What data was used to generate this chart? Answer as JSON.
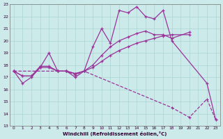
{
  "background_color": "#cceaea",
  "grid_color": "#aad4d4",
  "line_color": "#993399",
  "xlabel": "Windchill (Refroidissement éolien,°C)",
  "ylim": [
    13,
    23
  ],
  "xlim": [
    -0.5,
    23.5
  ],
  "yticks": [
    13,
    14,
    15,
    16,
    17,
    18,
    19,
    20,
    21,
    22,
    23
  ],
  "xticks": [
    0,
    1,
    2,
    3,
    4,
    5,
    6,
    7,
    8,
    9,
    10,
    11,
    12,
    13,
    14,
    15,
    16,
    17,
    18,
    19,
    20,
    21,
    22,
    23
  ],
  "curve1": {
    "x": [
      0,
      1,
      2,
      3,
      4,
      5,
      6,
      7,
      8,
      9,
      10,
      11,
      12,
      13,
      14,
      15,
      16,
      17,
      18,
      22,
      23
    ],
    "y": [
      17.5,
      16.5,
      17.0,
      17.8,
      19.0,
      17.5,
      17.5,
      17.0,
      17.5,
      19.5,
      21.0,
      19.8,
      22.5,
      22.3,
      22.8,
      22.0,
      21.8,
      22.5,
      20.0,
      16.5,
      13.5
    ],
    "style": "-"
  },
  "curve2": {
    "x": [
      0,
      1,
      2,
      3,
      4,
      5,
      6,
      7,
      8,
      9,
      10,
      11,
      12,
      13,
      14,
      15,
      16,
      17,
      18,
      20
    ],
    "y": [
      17.5,
      17.1,
      17.1,
      17.8,
      17.8,
      17.5,
      17.5,
      17.3,
      17.5,
      17.8,
      18.3,
      18.8,
      19.2,
      19.5,
      19.8,
      20.0,
      20.2,
      20.4,
      20.5,
      20.5
    ],
    "style": "-"
  },
  "curve3": {
    "x": [
      0,
      1,
      2,
      3,
      4,
      5,
      6,
      7,
      8,
      9,
      10,
      11,
      12,
      13,
      14,
      15,
      16,
      17,
      18,
      20
    ],
    "y": [
      17.5,
      17.1,
      17.1,
      17.9,
      17.9,
      17.5,
      17.5,
      17.3,
      17.5,
      18.0,
      18.8,
      19.5,
      20.0,
      20.3,
      20.6,
      20.8,
      20.5,
      20.5,
      20.2,
      20.7
    ],
    "style": "-"
  },
  "curve4": {
    "x": [
      0,
      5,
      6,
      7,
      8,
      18,
      20,
      22,
      23
    ],
    "y": [
      17.5,
      17.5,
      17.5,
      17.2,
      17.5,
      14.5,
      13.7,
      15.2,
      13.5
    ],
    "style": "--"
  }
}
